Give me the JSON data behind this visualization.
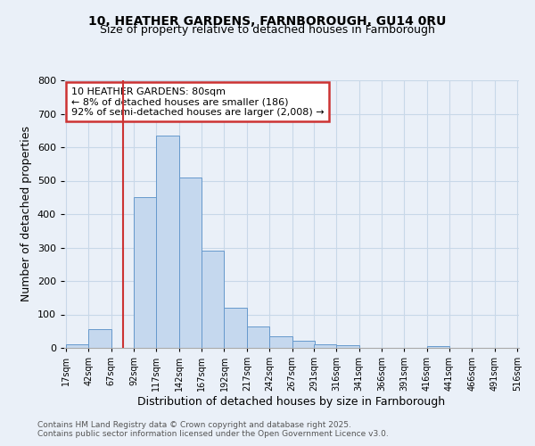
{
  "title1": "10, HEATHER GARDENS, FARNBOROUGH, GU14 0RU",
  "title2": "Size of property relative to detached houses in Farnborough",
  "xlabel": "Distribution of detached houses by size in Farnborough",
  "ylabel": "Number of detached properties",
  "footnote1": "Contains HM Land Registry data © Crown copyright and database right 2025.",
  "footnote2": "Contains public sector information licensed under the Open Government Licence v3.0.",
  "annotation_lines": [
    "10 HEATHER GARDENS: 80sqm",
    "← 8% of detached houses are smaller (186)",
    "92% of semi-detached houses are larger (2,008) →"
  ],
  "bin_edges": [
    17,
    42,
    67,
    92,
    117,
    142,
    167,
    192,
    217,
    242,
    267,
    291,
    316,
    341,
    366,
    391,
    416,
    441,
    466,
    491,
    516
  ],
  "bar_heights": [
    10,
    57,
    0,
    450,
    635,
    510,
    290,
    120,
    65,
    35,
    22,
    10,
    8,
    0,
    0,
    0,
    5,
    0,
    0,
    0
  ],
  "bar_color": "#c5d8ee",
  "bar_edgecolor": "#6699cc",
  "vline_x": 80,
  "vline_color": "#cc3333",
  "ylim": [
    0,
    800
  ],
  "yticks": [
    0,
    100,
    200,
    300,
    400,
    500,
    600,
    700,
    800
  ],
  "xtick_labels": [
    "17sqm",
    "42sqm",
    "67sqm",
    "92sqm",
    "117sqm",
    "142sqm",
    "167sqm",
    "192sqm",
    "217sqm",
    "242sqm",
    "267sqm",
    "291sqm",
    "316sqm",
    "341sqm",
    "366sqm",
    "391sqm",
    "416sqm",
    "441sqm",
    "466sqm",
    "491sqm",
    "516sqm"
  ],
  "grid_color": "#c8d8e8",
  "background_color": "#eaf0f8",
  "ann_box_facecolor": "#ffffff",
  "ann_box_edgecolor": "#cc3333",
  "font_family": "DejaVu Sans"
}
